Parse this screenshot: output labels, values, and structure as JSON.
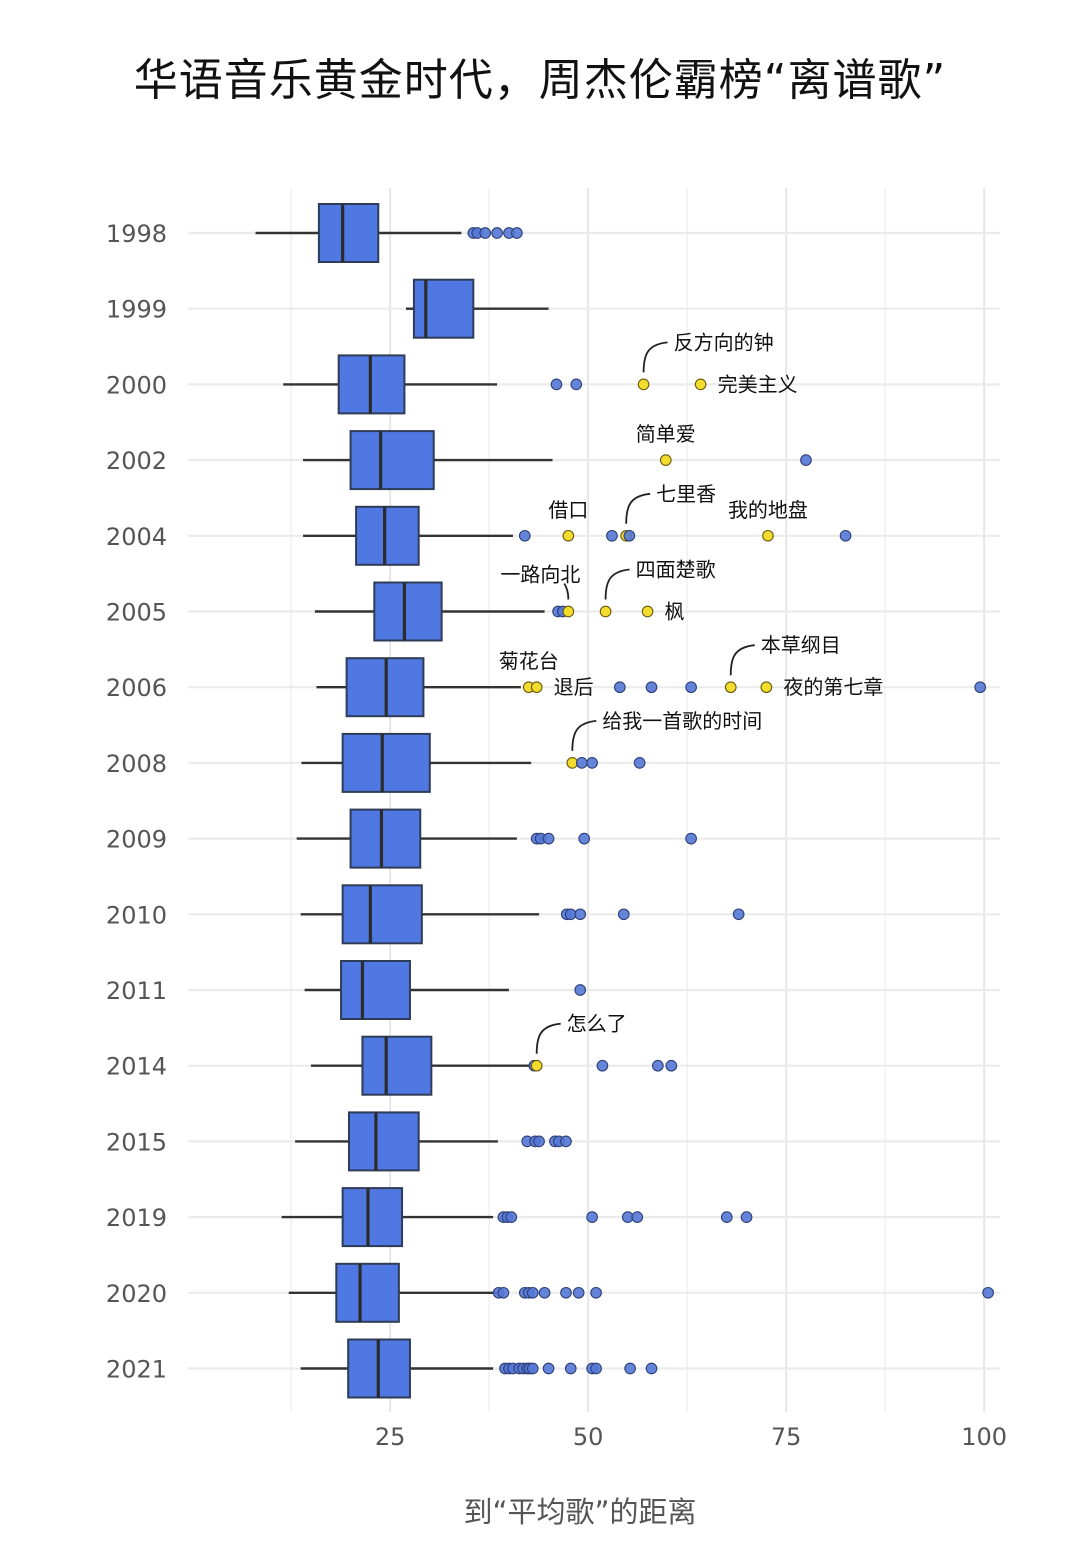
{
  "chart_data": {
    "type": "box",
    "orientation": "horizontal",
    "title": "华语音乐黄金时代，周杰伦霸榜“离谱歌”",
    "xlabel": "到“平均歌”的距离",
    "ylabel": "",
    "xlim": [
      2,
      102
    ],
    "xticks": [
      25,
      50,
      75,
      100
    ],
    "grid": true,
    "colors": {
      "box": "#4f78e2",
      "box_edge": "#2f3c57",
      "outlier": "#5478d6",
      "highlight": "#f2dc2c"
    },
    "categories": [
      "1998",
      "1999",
      "2000",
      "2002",
      "2004",
      "2005",
      "2006",
      "2008",
      "2009",
      "2010",
      "2011",
      "2014",
      "2015",
      "2019",
      "2020",
      "2021"
    ],
    "boxes": [
      {
        "label": "1998",
        "whislo": 8,
        "q1": 16,
        "med": 19,
        "q3": 23.5,
        "whishi": 34,
        "outliers": [
          35.5,
          36,
          37,
          38.5,
          40,
          41
        ]
      },
      {
        "label": "1999",
        "whislo": 27,
        "q1": 28,
        "med": 29.5,
        "q3": 35.5,
        "whishi": 45,
        "outliers": []
      },
      {
        "label": "2000",
        "whislo": 11.5,
        "q1": 18.5,
        "med": 22.5,
        "q3": 26.8,
        "whishi": 38.5,
        "outliers": [
          46,
          48.5,
          57,
          64.2
        ]
      },
      {
        "label": "2002",
        "whislo": 14,
        "q1": 20,
        "med": 23.8,
        "q3": 30.5,
        "whishi": 45.5,
        "outliers": [
          59.8,
          77.5
        ]
      },
      {
        "label": "2004",
        "whislo": 14,
        "q1": 20.7,
        "med": 24.3,
        "q3": 28.6,
        "whishi": 40.5,
        "outliers": [
          42,
          47.5,
          53,
          54.8,
          55.2,
          72.7,
          82.5
        ]
      },
      {
        "label": "2005",
        "whislo": 15.5,
        "q1": 23,
        "med": 26.8,
        "q3": 31.5,
        "whishi": 44.5,
        "outliers": [
          46.2,
          46.8,
          47.5,
          52.2,
          57.5
        ]
      },
      {
        "label": "2006",
        "whislo": 15.7,
        "q1": 19.5,
        "med": 24.5,
        "q3": 29.2,
        "whishi": 41.5,
        "outliers": [
          42.5,
          43.5,
          54,
          58,
          63,
          68,
          72.5,
          99.5
        ]
      },
      {
        "label": "2008",
        "whislo": 13.8,
        "q1": 19,
        "med": 24,
        "q3": 30,
        "whishi": 42.8,
        "outliers": [
          48,
          49.2,
          50.5,
          56.5
        ]
      },
      {
        "label": "2009",
        "whislo": 13.2,
        "q1": 20,
        "med": 23.9,
        "q3": 28.8,
        "whishi": 41,
        "outliers": [
          43.5,
          44,
          45,
          49.5,
          63
        ]
      },
      {
        "label": "2010",
        "whislo": 13.7,
        "q1": 19,
        "med": 22.5,
        "q3": 29,
        "whishi": 43.8,
        "outliers": [
          47.3,
          47.8,
          49,
          54.5,
          69
        ]
      },
      {
        "label": "2011",
        "whislo": 14.2,
        "q1": 18.8,
        "med": 21.5,
        "q3": 27.5,
        "whishi": 40,
        "outliers": [
          49
        ]
      },
      {
        "label": "2014",
        "whislo": 15,
        "q1": 21.5,
        "med": 24.5,
        "q3": 30.2,
        "whishi": 42.8,
        "outliers": [
          43.2,
          43.5,
          51.8,
          58.8,
          60.5
        ]
      },
      {
        "label": "2015",
        "whislo": 13,
        "q1": 19.8,
        "med": 23.2,
        "q3": 28.6,
        "whishi": 38.6,
        "outliers": [
          42.3,
          43.3,
          43.8,
          45.8,
          46.3,
          47.2
        ]
      },
      {
        "label": "2019",
        "whislo": 11.3,
        "q1": 19,
        "med": 22.2,
        "q3": 26.5,
        "whishi": 38,
        "outliers": [
          39.3,
          39.8,
          40.3,
          50.5,
          55,
          56.2,
          67.5,
          70
        ]
      },
      {
        "label": "2020",
        "whislo": 12.2,
        "q1": 18.2,
        "med": 21.2,
        "q3": 26.1,
        "whishi": 38.5,
        "outliers": [
          38.7,
          39.3,
          42,
          42.5,
          43,
          44.5,
          47.2,
          48.8,
          51,
          100.5
        ]
      },
      {
        "label": "2021",
        "whislo": 13.7,
        "q1": 19.7,
        "med": 23.5,
        "q3": 27.5,
        "whishi": 38,
        "outliers": [
          39.5,
          40,
          40.5,
          41.3,
          41.8,
          42.3,
          42.6,
          43,
          45,
          47.8,
          50.5,
          51,
          55.3,
          58
        ]
      }
    ],
    "highlights": [
      {
        "label": "反方向的钟",
        "year": "2000",
        "x": 57,
        "placement": "above-right"
      },
      {
        "label": "完美主义",
        "year": "2000",
        "x": 64.2,
        "placement": "right"
      },
      {
        "label": "简单爱",
        "year": "2002",
        "x": 59.8,
        "placement": "above"
      },
      {
        "label": "借口",
        "year": "2004",
        "x": 47.5,
        "placement": "above"
      },
      {
        "label": "七里香",
        "year": "2004",
        "x": 54.8,
        "placement": "above-right"
      },
      {
        "label": "我的地盘",
        "year": "2004",
        "x": 72.7,
        "placement": "above"
      },
      {
        "label": "一路向北",
        "year": "2005",
        "x": 47.5,
        "placement": "above-left"
      },
      {
        "label": "四面楚歌",
        "year": "2005",
        "x": 52.2,
        "placement": "above-right"
      },
      {
        "label": "枫",
        "year": "2005",
        "x": 57.5,
        "placement": "right"
      },
      {
        "label": "菊花台",
        "year": "2006",
        "x": 42.5,
        "placement": "above"
      },
      {
        "label": "退后",
        "year": "2006",
        "x": 43.5,
        "placement": "right"
      },
      {
        "label": "本草纲目",
        "year": "2006",
        "x": 68,
        "placement": "above-right"
      },
      {
        "label": "夜的第七章",
        "year": "2006",
        "x": 72.5,
        "placement": "right"
      },
      {
        "label": "给我一首歌的时间",
        "year": "2008",
        "x": 48,
        "placement": "above-right"
      },
      {
        "label": "怎么了",
        "year": "2014",
        "x": 43.5,
        "placement": "above-right"
      }
    ]
  }
}
